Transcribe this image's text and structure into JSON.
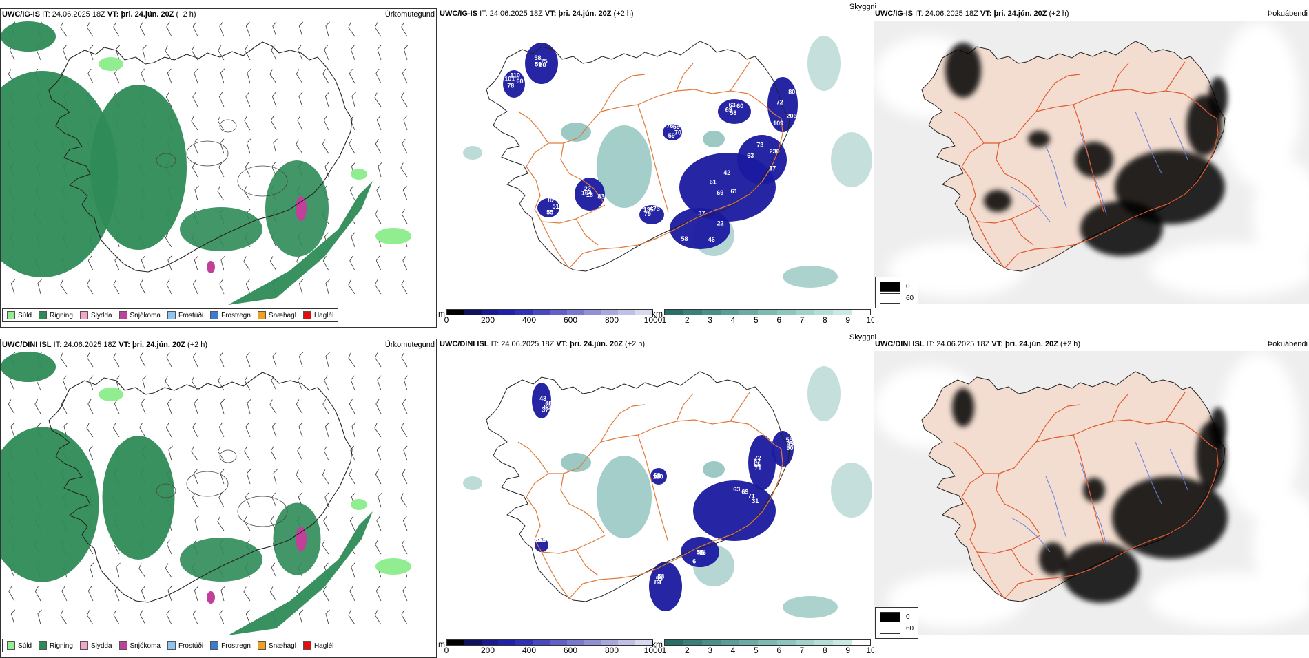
{
  "rows": [
    {
      "model": "UWC/IG-IS",
      "precip_panel": {
        "it_label": "IT:",
        "it_value": "24.06.2025 18Z",
        "vt_label": "VT:",
        "vt_value": "þri. 24.jún. 20Z",
        "lead": "(+2 h)",
        "title": "Úrkomutegund"
      },
      "cloud_panel": {
        "it_label": "IT:",
        "it_value": "24.06.2025 18Z",
        "vt_label": "VT:",
        "vt_value": "þri. 24.jún. 20Z",
        "lead": "(+2 h)",
        "title": "Skyggni",
        "labels": [
          "75",
          "78",
          "37",
          "61",
          "63",
          "80",
          "58",
          "76",
          "83",
          "79",
          "82",
          "60",
          "101",
          "22",
          "69",
          "73",
          "206",
          "69",
          "59",
          "18",
          "135",
          "51",
          "59",
          "110",
          "46",
          "61",
          "230",
          "109",
          "63",
          "70",
          "164",
          "473",
          "55",
          "58",
          "60",
          "58",
          "42",
          "37",
          "72",
          "60",
          "59",
          "22"
        ]
      },
      "dew_panel": {
        "it_label": "IT:",
        "it_value": "24.06.2025 18Z",
        "vt_label": "VT:",
        "vt_value": "þri. 24.jún. 20Z",
        "lead": "(+2 h)",
        "title": "Þokuábendi"
      }
    },
    {
      "model": "UWC/DINI ISL",
      "precip_panel": {
        "it_label": "IT:",
        "it_value": "24.06.2025 18Z",
        "vt_label": "VT:",
        "vt_value": "þri. 24.jún. 20Z",
        "lead": "(+2 h)",
        "title": "Úrkomutegund"
      },
      "cloud_panel": {
        "it_label": "IT:",
        "it_value": "24.06.2025 18Z",
        "vt_label": "VT:",
        "vt_value": "þri. 24.jún. 20Z",
        "lead": "(+2 h)",
        "title": "Skyggni",
        "labels": [
          "43",
          "71",
          "63",
          "45",
          "84",
          "55",
          "120",
          "583",
          "48",
          "66",
          "69",
          "45",
          "55",
          "45",
          "50",
          "166",
          "86",
          "82",
          "71",
          "57",
          "58",
          "90",
          "63",
          "67",
          "37",
          "72",
          "31",
          "6"
        ]
      },
      "dew_panel": {
        "it_label": "IT:",
        "it_value": "24.06.2025 18Z",
        "vt_label": "VT:",
        "vt_value": "þri. 24.jún. 20Z",
        "lead": "(+2 h)",
        "title": "Þokuábendi"
      }
    }
  ],
  "precip_legend": [
    {
      "label": "Súld",
      "color": "#90ee90"
    },
    {
      "label": "Rigning",
      "color": "#2e8b57"
    },
    {
      "label": "Slydda",
      "color": "#f4a6c8"
    },
    {
      "label": "Snjókoma",
      "color": "#c0409a"
    },
    {
      "label": "Frostúði",
      "color": "#8fc3f0"
    },
    {
      "label": "Frostregn",
      "color": "#3b7bd0"
    },
    {
      "label": "Snæhagl",
      "color": "#f0a020"
    },
    {
      "label": "Haglél",
      "color": "#e01010"
    }
  ],
  "cloudbase_bar": {
    "unit": "m",
    "ticks": [
      "0",
      "200",
      "400",
      "600",
      "800",
      "1000"
    ],
    "colors": [
      "#000000",
      "#101060",
      "#1a1a90",
      "#2020a8",
      "#3030b8",
      "#4848c0",
      "#6060c8",
      "#7878cc",
      "#9090d4",
      "#a8a8dc",
      "#c0c0e4",
      "#d8d8f0"
    ]
  },
  "visibility_bar": {
    "unit": "km",
    "ticks": [
      "1",
      "2",
      "3",
      "4",
      "5",
      "6",
      "7",
      "8",
      "9",
      "10"
    ],
    "colors": [
      "#2a6e68",
      "#3a8078",
      "#4a9088",
      "#5a9e96",
      "#6aaca4",
      "#7cbab2",
      "#8ec6be",
      "#a2d2ca",
      "#b6ded8",
      "#cae8e4",
      "#ffffff"
    ]
  },
  "dew_legend": [
    {
      "label": "0",
      "color": "#000000"
    },
    {
      "label": "60",
      "color": "#ffffff"
    }
  ],
  "colors": {
    "rain": "#2e8b57",
    "drizzle": "#90ee90",
    "snow": "#c0409a",
    "cloud": "#1a1aa0",
    "fog": "#5aa59c",
    "road": "#e07a3a",
    "land_tint": "#f2ddd0",
    "river": "#6a7fe0"
  }
}
